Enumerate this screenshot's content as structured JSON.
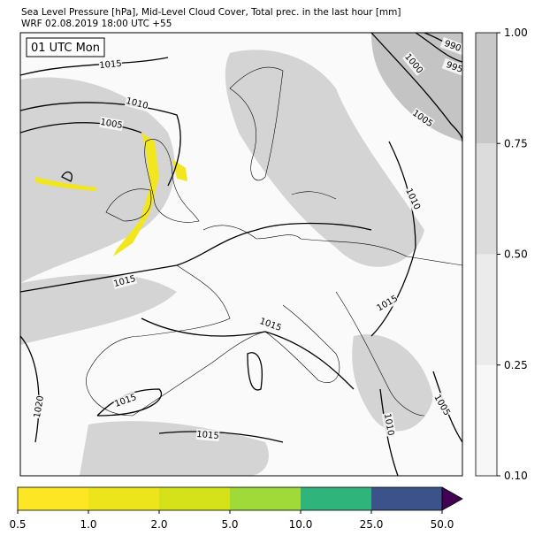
{
  "header": {
    "title": "Sea Level Pressure [hPa], Mid-Level Cloud Cover, Total prec. in the last hour [mm]",
    "subtitle": "WRF 02.08.2019 18:00 UTC +55"
  },
  "map": {
    "time_label": "01 UTC Mon",
    "contour_labels": [
      "1015",
      "1010",
      "1005",
      "990",
      "995",
      "1000",
      "1005",
      "1010",
      "1015",
      "1015",
      "1015",
      "1020",
      "1015",
      "1015",
      "1010",
      "1005"
    ]
  },
  "cloud_colorbar": {
    "ticks": [
      "0.10",
      "0.25",
      "0.50",
      "0.75",
      "1.00"
    ]
  },
  "precip_colorbar": {
    "ticks": [
      "0.5",
      "1.0",
      "2.0",
      "5.0",
      "10.0",
      "25.0",
      "50.0"
    ]
  }
}
